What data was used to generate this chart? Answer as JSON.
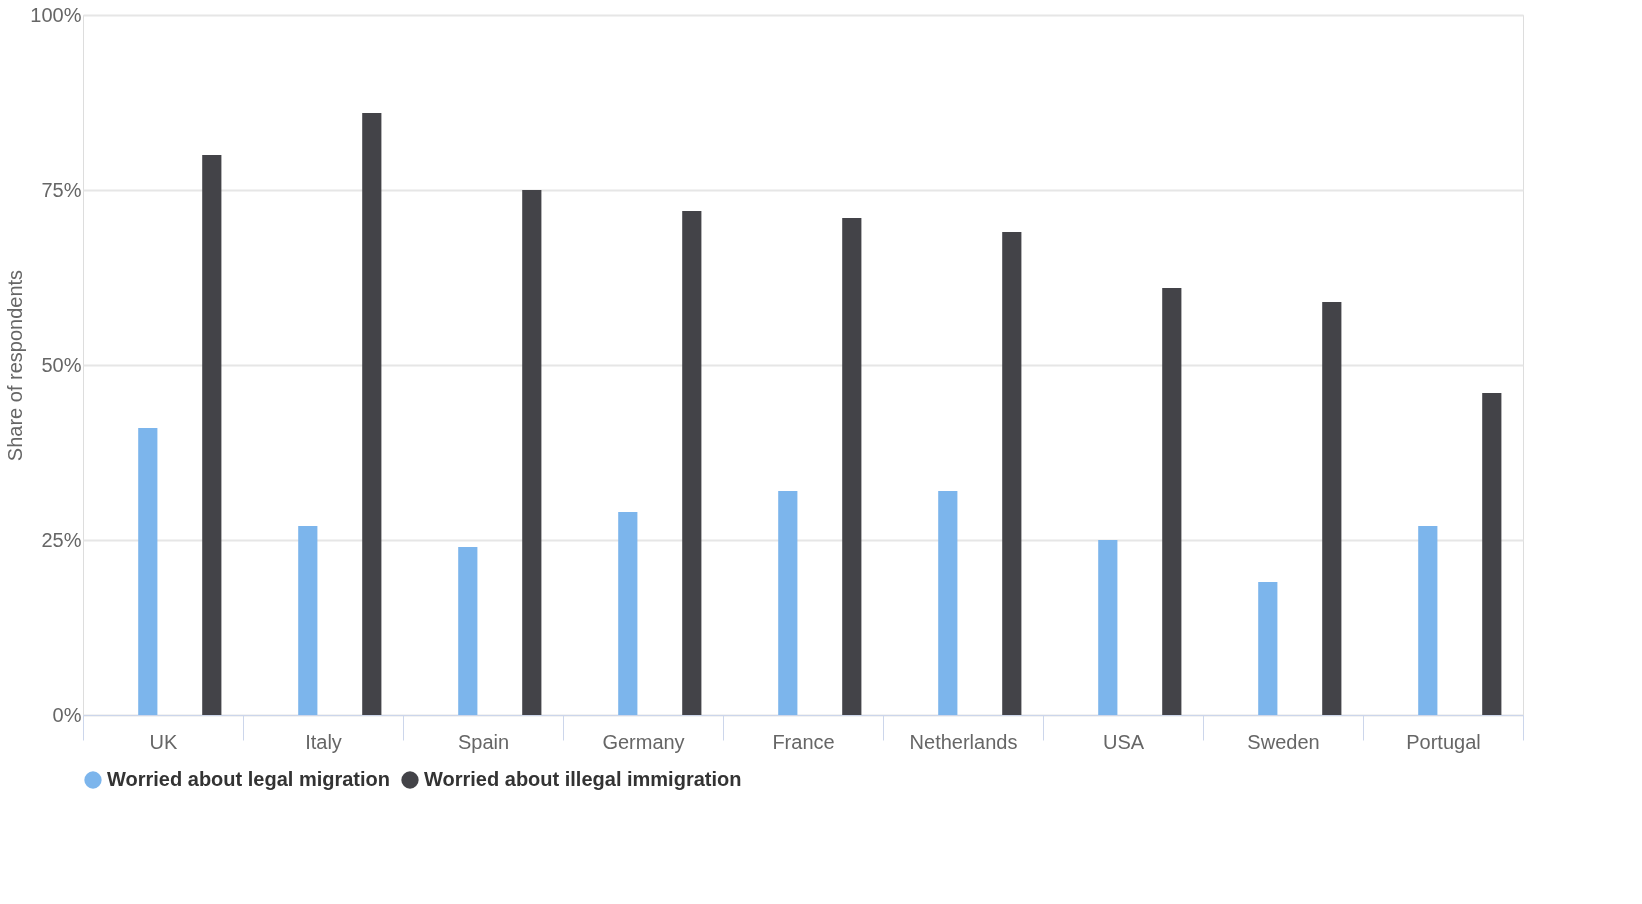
{
  "chart_data": {
    "type": "bar",
    "ylabel": "Share of respondents",
    "categories": [
      "UK",
      "Italy",
      "Spain",
      "Germany",
      "France",
      "Netherlands",
      "USA",
      "Sweden",
      "Portugal"
    ],
    "series": [
      {
        "name": "Worried about legal migration",
        "color": "#7cb5ec",
        "values": [
          41,
          27,
          24,
          29,
          32,
          32,
          25,
          19,
          27
        ]
      },
      {
        "name": "Worried about illegal immigration",
        "color": "#434348",
        "values": [
          80,
          86,
          75,
          72,
          71,
          69,
          61,
          59,
          46
        ]
      }
    ],
    "ylim": [
      0,
      100
    ],
    "yticks": [
      {
        "value": 0,
        "label": "0%"
      },
      {
        "value": 25,
        "label": "25%"
      },
      {
        "value": 50,
        "label": "50%"
      },
      {
        "value": 75,
        "label": "75%"
      },
      {
        "value": 100,
        "label": "100%"
      }
    ],
    "grid": "y",
    "legend": "bottom"
  }
}
